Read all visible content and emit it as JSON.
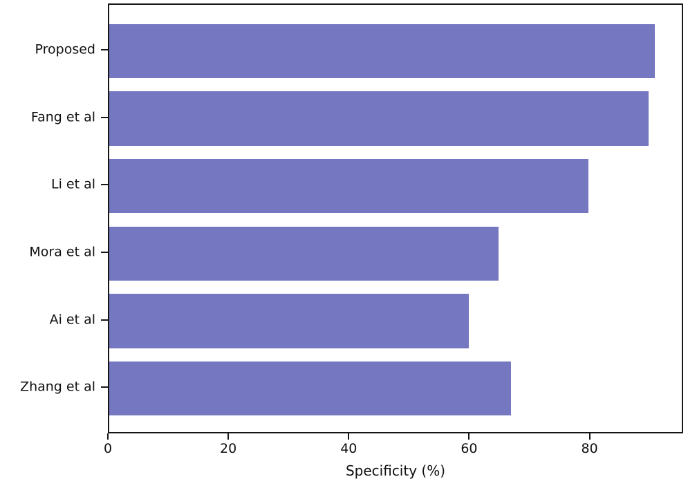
{
  "chart_data": {
    "type": "bar",
    "orientation": "horizontal",
    "title": "",
    "xlabel": "Specificity (%)",
    "ylabel": "",
    "categories": [
      "Proposed",
      "Fang et al",
      "Li et al",
      "Mora et al",
      "Ai et al",
      "Zhang et al"
    ],
    "values": [
      91,
      90,
      80,
      65,
      60,
      67
    ],
    "xticks": [
      0,
      20,
      40,
      60,
      80
    ],
    "xlim": [
      0,
      95.55
    ],
    "grid": false,
    "legend": null,
    "bar_color": "#7578c1",
    "frame_color": "#161616",
    "text_color": "#111111",
    "background_color": "#ffffff"
  }
}
